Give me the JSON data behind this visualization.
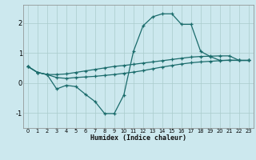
{
  "background_color": "#cce8ee",
  "grid_color": "#aacccc",
  "line_color": "#1a6b6b",
  "xlim": [
    -0.5,
    23.5
  ],
  "ylim": [
    -1.5,
    2.6
  ],
  "yticks": [
    -1,
    0,
    1,
    2
  ],
  "xlabel": "Humidex (Indice chaleur)",
  "line1_x": [
    0,
    1,
    2,
    3,
    4,
    5,
    6,
    7,
    8,
    9,
    10,
    11,
    12,
    13,
    14,
    15,
    16,
    17,
    18,
    19,
    20,
    21,
    22,
    23
  ],
  "line1_y": [
    0.55,
    0.35,
    0.28,
    -0.2,
    -0.08,
    -0.12,
    -0.38,
    -0.62,
    -1.02,
    -1.02,
    -0.4,
    1.05,
    1.9,
    2.2,
    2.3,
    2.3,
    1.95,
    1.95,
    1.05,
    0.88,
    0.75,
    0.75,
    0.75,
    0.75
  ],
  "line2_x": [
    0,
    1,
    2,
    3,
    4,
    5,
    6,
    7,
    8,
    9,
    10,
    11,
    12,
    13,
    14,
    15,
    16,
    17,
    18,
    19,
    20,
    21,
    22,
    23
  ],
  "line2_y": [
    0.55,
    0.35,
    0.28,
    0.28,
    0.3,
    0.35,
    0.4,
    0.45,
    0.5,
    0.55,
    0.58,
    0.62,
    0.66,
    0.7,
    0.74,
    0.78,
    0.82,
    0.86,
    0.88,
    0.89,
    0.9,
    0.9,
    0.75,
    0.75
  ],
  "line3_x": [
    0,
    1,
    2,
    3,
    4,
    5,
    6,
    7,
    8,
    9,
    10,
    11,
    12,
    13,
    14,
    15,
    16,
    17,
    18,
    19,
    20,
    21,
    22,
    23
  ],
  "line3_y": [
    0.55,
    0.35,
    0.28,
    0.18,
    0.15,
    0.18,
    0.2,
    0.22,
    0.25,
    0.28,
    0.32,
    0.36,
    0.41,
    0.47,
    0.53,
    0.58,
    0.63,
    0.67,
    0.7,
    0.72,
    0.74,
    0.76,
    0.75,
    0.75
  ]
}
